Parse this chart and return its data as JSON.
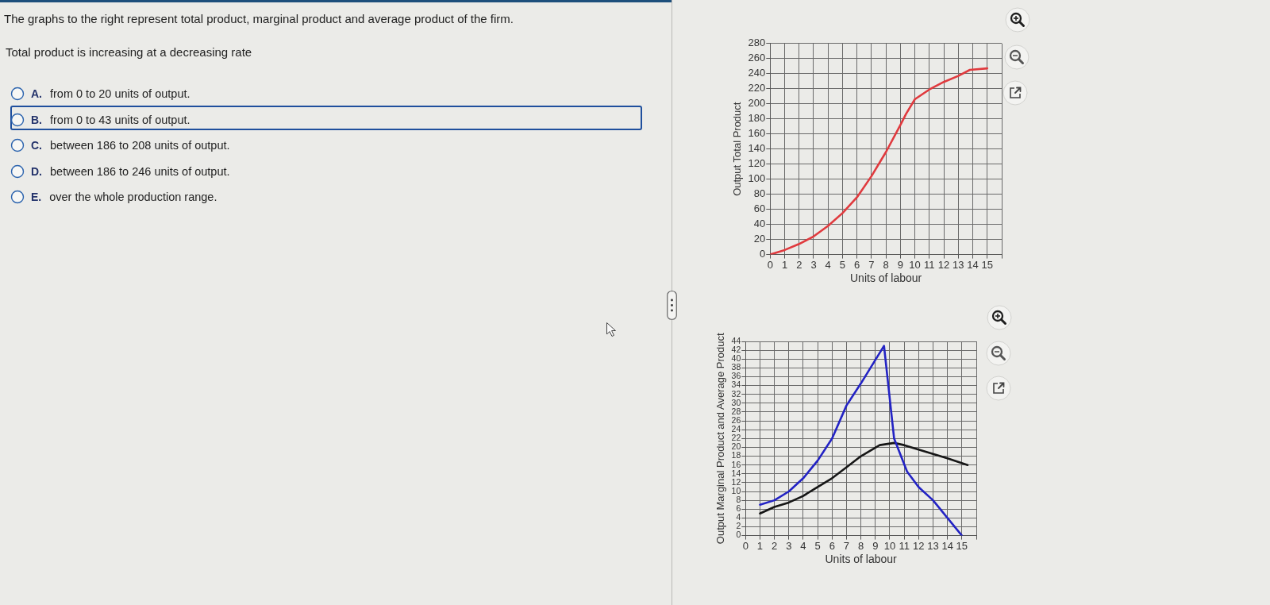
{
  "chart_data": [
    {
      "type": "other",
      "title": "The graphs to the right represent total product, marginal product and average product of the firm.",
      "subtitle": "Total product is increasing at a decreasing rate",
      "annotations": [
        "A. from 0 to 20 units of output.",
        "B. from 0 to 43 units of output.",
        "C. between 186 to 208 units of output.",
        "D. between 186 to 246 units of output.",
        "E. over the whole production range."
      ]
    },
    {
      "type": "line",
      "xlabel": "Units of labour",
      "ylabel": "Output Total Product",
      "xlim": [
        0,
        16
      ],
      "xticks": [
        0,
        1,
        2,
        3,
        4,
        5,
        6,
        7,
        8,
        9,
        10,
        11,
        12,
        13,
        14,
        15,
        {
          "value": 16,
          "label": null
        }
      ],
      "ylim": [
        0,
        280
      ],
      "yticks": [
        0,
        20,
        40,
        60,
        80,
        100,
        120,
        140,
        160,
        180,
        200,
        220,
        240,
        260,
        280
      ],
      "grid": true,
      "series": [
        {
          "color": "#e03a3e",
          "x": [
            0,
            1,
            2,
            3,
            4,
            5,
            6,
            7,
            8,
            9,
            9.4,
            10,
            11,
            12,
            13,
            13.8,
            15
          ],
          "values": [
            0,
            6,
            14,
            24,
            38,
            55,
            76,
            104,
            136,
            172,
            187,
            206,
            219,
            229,
            237,
            245,
            247
          ]
        }
      ]
    },
    {
      "type": "line",
      "xlabel": "Units of labour",
      "ylabel": "Output Marginal Product and Average Product",
      "xlim": [
        0,
        16
      ],
      "xticks": [
        0,
        1,
        2,
        3,
        4,
        5,
        6,
        7,
        8,
        9,
        10,
        11,
        12,
        13,
        14,
        15,
        {
          "value": 16,
          "label": null
        }
      ],
      "ylim": [
        0,
        44
      ],
      "yticks": [
        0,
        2,
        4,
        6,
        8,
        10,
        12,
        14,
        16,
        18,
        20,
        22,
        24,
        26,
        28,
        30,
        32,
        34,
        36,
        38,
        40,
        42,
        44
      ],
      "grid": true,
      "series": [
        {
          "color": "#2323c4",
          "x": [
            1,
            2,
            3,
            4,
            5,
            6,
            7,
            8,
            9.6,
            10.3,
            11.2,
            12,
            13,
            15
          ],
          "values": [
            7,
            8,
            10,
            13,
            17,
            22,
            29.5,
            34.5,
            43,
            22,
            14.5,
            11,
            8,
            0
          ]
        },
        {
          "color": "#161616",
          "x": [
            1,
            2,
            3,
            4,
            5,
            6,
            7,
            8,
            9.3,
            10.3,
            11,
            12,
            13,
            14,
            15.4
          ],
          "values": [
            5,
            6.5,
            7.5,
            9,
            11,
            13,
            15.5,
            18,
            20.5,
            21,
            20.5,
            19.5,
            18.5,
            17.5,
            16
          ]
        }
      ]
    }
  ]
}
